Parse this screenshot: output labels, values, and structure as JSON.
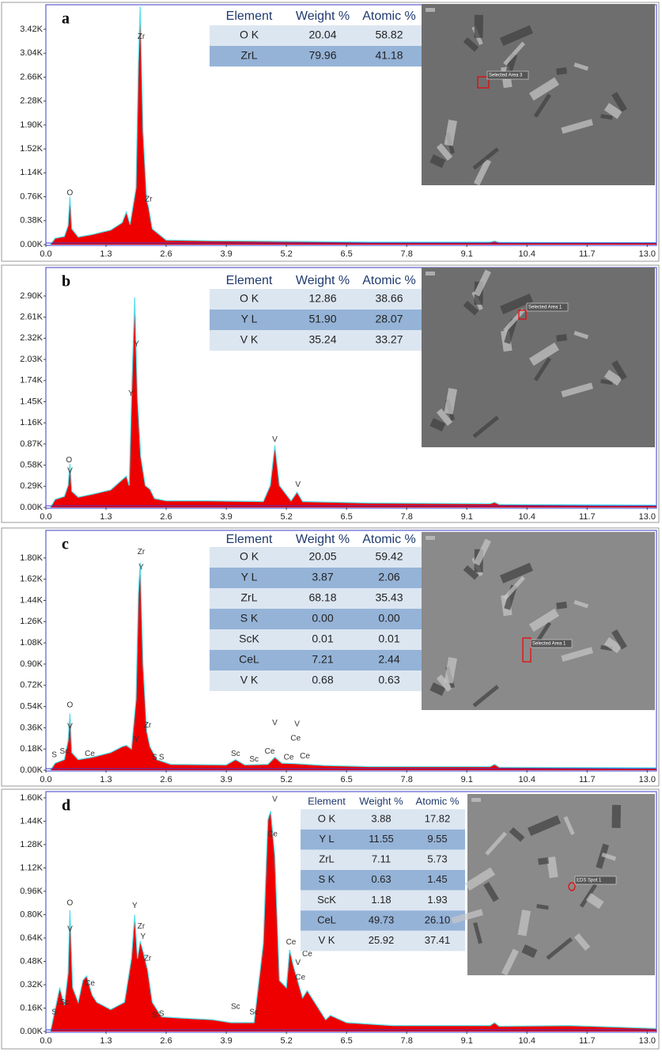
{
  "chart_data": [
    {
      "type": "area",
      "panel_label": "a",
      "color": "#ee0000",
      "line_color": "#55dde8",
      "xlim": [
        0,
        13.2
      ],
      "ylim": [
        0,
        3810
      ],
      "xticks": [
        {
          "value": 0,
          "label": "0.0"
        },
        1.3,
        2.6,
        3.9,
        5.2,
        6.5,
        7.8,
        9.1,
        10.4,
        11.7,
        {
          "value": 13,
          "label": "13.0"
        }
      ],
      "yticks": [
        {
          "value": 0,
          "label": "0.00K"
        },
        {
          "value": 380,
          "label": "0.38K"
        },
        {
          "value": 760,
          "label": "0.76K"
        },
        {
          "value": 1140,
          "label": "1.14K"
        },
        {
          "value": 1520,
          "label": "1.52K"
        },
        {
          "value": 1900,
          "label": "1.90K"
        },
        {
          "value": 2280,
          "label": "2.28K"
        },
        {
          "value": 2660,
          "label": "2.66K"
        },
        {
          "value": 3040,
          "label": "3.04K"
        },
        {
          "value": 3420,
          "label": "3.42K"
        }
      ],
      "x": [
        0.1,
        0.2,
        0.4,
        0.48,
        0.52,
        0.56,
        0.7,
        1.0,
        1.4,
        1.65,
        1.74,
        1.82,
        1.95,
        2.0,
        2.04,
        2.1,
        2.18,
        2.22,
        2.3,
        2.6,
        3.5,
        5.2,
        7.0,
        9.6,
        9.7,
        9.8,
        13.2
      ],
      "values": [
        0,
        100,
        130,
        300,
        760,
        250,
        120,
        160,
        230,
        350,
        520,
        320,
        900,
        2900,
        3780,
        1800,
        700,
        600,
        250,
        70,
        60,
        50,
        40,
        40,
        55,
        35,
        30
      ],
      "annotations": [
        {
          "text": "O",
          "x": 0.52,
          "y": 820
        },
        {
          "text": "Zr",
          "x": 2.06,
          "y": 3300
        },
        {
          "text": "Zr",
          "x": 2.22,
          "y": 720
        }
      ],
      "table": {
        "columns": [
          "Element",
          "Weight %",
          "Atomic %"
        ],
        "rows": [
          [
            "O K",
            "20.04",
            "58.82"
          ],
          [
            "ZrL",
            "79.96",
            "41.18"
          ]
        ]
      },
      "image_caption": "Selected Area 3"
    },
    {
      "type": "area",
      "panel_label": "b",
      "color": "#ee0000",
      "line_color": "#55dde8",
      "xlim": [
        0,
        13.2
      ],
      "ylim": [
        0,
        3290
      ],
      "xticks": [
        {
          "value": 0,
          "label": "0.0"
        },
        1.3,
        2.6,
        3.9,
        5.2,
        6.5,
        7.8,
        9.1,
        10.4,
        11.7,
        {
          "value": 13,
          "label": "13.0"
        }
      ],
      "yticks": [
        {
          "value": 0,
          "label": "0.00K"
        },
        {
          "value": 290,
          "label": "0.29K"
        },
        {
          "value": 580,
          "label": "0.58K"
        },
        {
          "value": 870,
          "label": "0.87K"
        },
        {
          "value": 1160,
          "label": "1.16K"
        },
        {
          "value": 1450,
          "label": "1.45K"
        },
        {
          "value": 1740,
          "label": "1.74K"
        },
        {
          "value": 2030,
          "label": "2.03K"
        },
        {
          "value": 2320,
          "label": "2.32K"
        },
        {
          "value": 2610,
          "label": "2.61K"
        },
        {
          "value": 2900,
          "label": "2.90K"
        }
      ],
      "x": [
        0.1,
        0.2,
        0.4,
        0.48,
        0.52,
        0.56,
        0.7,
        1.0,
        1.4,
        1.65,
        1.74,
        1.8,
        1.86,
        1.92,
        1.98,
        2.05,
        2.15,
        2.25,
        2.35,
        2.6,
        3.5,
        4.7,
        4.85,
        4.95,
        5.05,
        5.3,
        5.43,
        5.55,
        7.0,
        9.6,
        9.7,
        9.8,
        13.2
      ],
      "values": [
        0,
        110,
        150,
        300,
        600,
        220,
        140,
        180,
        240,
        380,
        430,
        300,
        1700,
        2880,
        1500,
        700,
        300,
        250,
        120,
        90,
        90,
        80,
        300,
        850,
        300,
        90,
        210,
        80,
        60,
        50,
        70,
        40,
        30
      ],
      "annotations": [
        {
          "text": "O",
          "x": 0.5,
          "y": 650
        },
        {
          "text": "V",
          "x": 0.52,
          "y": 500
        },
        {
          "text": "Y",
          "x": 1.96,
          "y": 2240
        },
        {
          "text": "Y",
          "x": 1.84,
          "y": 1560
        },
        {
          "text": "V",
          "x": 4.95,
          "y": 930
        },
        {
          "text": "V",
          "x": 5.45,
          "y": 310
        }
      ],
      "table": {
        "columns": [
          "Element",
          "Weight %",
          "Atomic %"
        ],
        "rows": [
          [
            "O K",
            "12.86",
            "38.66"
          ],
          [
            "Y L",
            "51.90",
            "28.07"
          ],
          [
            "V K",
            "35.24",
            "33.27"
          ]
        ]
      },
      "image_caption": "Selected Area 1"
    },
    {
      "type": "area",
      "panel_label": "c",
      "color": "#ee0000",
      "line_color": "#55dde8",
      "xlim": [
        0,
        13.2
      ],
      "ylim": [
        0,
        2034
      ],
      "xticks": [
        {
          "value": 0,
          "label": "0.0"
        },
        1.3,
        2.6,
        3.9,
        5.2,
        6.5,
        7.8,
        9.1,
        10.4,
        11.7,
        {
          "value": 13,
          "label": "13.0"
        }
      ],
      "yticks": [
        {
          "value": 0,
          "label": "0.00K"
        },
        {
          "value": 180,
          "label": "0.18K"
        },
        {
          "value": 360,
          "label": "0.36K"
        },
        {
          "value": 540,
          "label": "0.54K"
        },
        {
          "value": 720,
          "label": "0.72K"
        },
        {
          "value": 900,
          "label": "0.90K"
        },
        {
          "value": 1080,
          "label": "1.08K"
        },
        {
          "value": 1260,
          "label": "1.26K"
        },
        {
          "value": 1440,
          "label": "1.44K"
        },
        {
          "value": 1620,
          "label": "1.62K"
        },
        {
          "value": 1800,
          "label": "1.80K"
        }
      ],
      "x": [
        0.1,
        0.2,
        0.4,
        0.48,
        0.52,
        0.56,
        0.7,
        1.0,
        1.4,
        1.65,
        1.74,
        1.85,
        1.95,
        2.0,
        2.04,
        2.1,
        2.18,
        2.25,
        2.4,
        2.7,
        3.9,
        4.1,
        4.3,
        4.8,
        4.95,
        5.1,
        5.4,
        6.0,
        7.0,
        9.6,
        9.7,
        9.8,
        13.2
      ],
      "values": [
        0,
        60,
        90,
        250,
        480,
        150,
        90,
        110,
        150,
        200,
        210,
        180,
        600,
        1500,
        1760,
        900,
        330,
        200,
        90,
        50,
        45,
        90,
        45,
        50,
        110,
        60,
        55,
        40,
        30,
        30,
        50,
        25,
        20
      ],
      "annotations": [
        {
          "text": "O",
          "x": 0.52,
          "y": 550
        },
        {
          "text": "V",
          "x": 0.52,
          "y": 370
        },
        {
          "text": "S",
          "x": 0.18,
          "y": 130
        },
        {
          "text": "Sc",
          "x": 0.4,
          "y": 160
        },
        {
          "text": "Ce",
          "x": 0.95,
          "y": 140
        },
        {
          "text": "Zr",
          "x": 2.06,
          "y": 1850
        },
        {
          "text": "Y",
          "x": 2.06,
          "y": 1720
        },
        {
          "text": "Y",
          "x": 1.96,
          "y": 260
        },
        {
          "text": "Zr",
          "x": 2.2,
          "y": 380
        },
        {
          "text": "S",
          "x": 2.35,
          "y": 110
        },
        {
          "text": "S",
          "x": 2.5,
          "y": 110
        },
        {
          "text": "Sc",
          "x": 4.1,
          "y": 140
        },
        {
          "text": "Sc",
          "x": 4.5,
          "y": 90
        },
        {
          "text": "Ce",
          "x": 4.84,
          "y": 160
        },
        {
          "text": "V",
          "x": 4.95,
          "y": 400
        },
        {
          "text": "V",
          "x": 5.43,
          "y": 390
        },
        {
          "text": "Ce",
          "x": 5.4,
          "y": 270
        },
        {
          "text": "Ce",
          "x": 5.25,
          "y": 110
        },
        {
          "text": "Ce",
          "x": 5.6,
          "y": 120
        }
      ],
      "table": {
        "columns": [
          "Element",
          "Weight %",
          "Atomic %"
        ],
        "rows": [
          [
            "O K",
            "20.05",
            "59.42"
          ],
          [
            "Y L",
            "3.87",
            "2.06"
          ],
          [
            "ZrL",
            "68.18",
            "35.43"
          ],
          [
            "S K",
            "0.00",
            "0.00"
          ],
          [
            "ScK",
            "0.01",
            "0.01"
          ],
          [
            "CeL",
            "7.21",
            "2.44"
          ],
          [
            "V K",
            "0.68",
            "0.63"
          ]
        ]
      },
      "image_caption": "Selected Area 1"
    },
    {
      "type": "area",
      "panel_label": "d",
      "color": "#ee0000",
      "line_color": "#55dde8",
      "xlim": [
        0,
        13.2
      ],
      "ylim": [
        0,
        1643
      ],
      "xticks": [
        {
          "value": 0,
          "label": "0.0"
        },
        1.3,
        2.6,
        3.9,
        5.2,
        6.5,
        7.8,
        9.1,
        10.4,
        11.7,
        {
          "value": 13,
          "label": "13.0"
        }
      ],
      "yticks": [
        {
          "value": 0,
          "label": "0.00K"
        },
        {
          "value": 160,
          "label": "0.16K"
        },
        {
          "value": 320,
          "label": "0.32K"
        },
        {
          "value": 480,
          "label": "0.48K"
        },
        {
          "value": 640,
          "label": "0.64K"
        },
        {
          "value": 800,
          "label": "0.80K"
        },
        {
          "value": 960,
          "label": "0.96K"
        },
        {
          "value": 1120,
          "label": "1.12K"
        },
        {
          "value": 1280,
          "label": "1.28K"
        },
        {
          "value": 1440,
          "label": "1.44K"
        },
        {
          "value": 1600,
          "label": "1.60K"
        }
      ],
      "x": [
        0.1,
        0.2,
        0.3,
        0.4,
        0.48,
        0.52,
        0.58,
        0.7,
        0.8,
        0.88,
        1.0,
        1.1,
        1.4,
        1.7,
        1.85,
        1.92,
        1.98,
        2.04,
        2.1,
        2.2,
        2.3,
        2.5,
        3.0,
        3.6,
        4.0,
        4.5,
        4.7,
        4.8,
        4.86,
        4.95,
        5.05,
        5.2,
        5.27,
        5.35,
        5.55,
        5.65,
        6.05,
        6.15,
        6.5,
        7.5,
        9.6,
        9.7,
        9.8,
        11.3,
        13.2
      ],
      "values": [
        0,
        150,
        300,
        180,
        400,
        830,
        300,
        200,
        350,
        380,
        250,
        200,
        150,
        200,
        500,
        800,
        500,
        620,
        550,
        420,
        200,
        100,
        90,
        80,
        60,
        60,
        600,
        1450,
        1510,
        1200,
        350,
        300,
        560,
        450,
        230,
        280,
        80,
        110,
        60,
        40,
        40,
        60,
        35,
        40,
        20
      ],
      "annotations": [
        {
          "text": "O",
          "x": 0.52,
          "y": 880
        },
        {
          "text": "V",
          "x": 0.52,
          "y": 700
        },
        {
          "text": "S",
          "x": 0.18,
          "y": 130
        },
        {
          "text": "Sc",
          "x": 0.4,
          "y": 200
        },
        {
          "text": "Ce",
          "x": 0.95,
          "y": 330
        },
        {
          "text": "Y",
          "x": 1.92,
          "y": 860
        },
        {
          "text": "Zr",
          "x": 2.06,
          "y": 720
        },
        {
          "text": "Y",
          "x": 2.1,
          "y": 650
        },
        {
          "text": "Zr",
          "x": 2.2,
          "y": 500
        },
        {
          "text": "S",
          "x": 2.35,
          "y": 110
        },
        {
          "text": "S",
          "x": 2.5,
          "y": 120
        },
        {
          "text": "Sc",
          "x": 4.1,
          "y": 170
        },
        {
          "text": "Sc",
          "x": 4.5,
          "y": 130
        },
        {
          "text": "V",
          "x": 4.95,
          "y": 1590
        },
        {
          "text": "Ce",
          "x": 4.9,
          "y": 1350
        },
        {
          "text": "Ce",
          "x": 5.3,
          "y": 610
        },
        {
          "text": "V",
          "x": 5.45,
          "y": 470
        },
        {
          "text": "Ce",
          "x": 5.65,
          "y": 530
        },
        {
          "text": "Ce",
          "x": 5.5,
          "y": 370
        }
      ],
      "table": {
        "columns": [
          "Element",
          "Weight %",
          "Atomic %"
        ],
        "rows": [
          [
            "O K",
            "3.88",
            "17.82"
          ],
          [
            "Y L",
            "11.55",
            "9.55"
          ],
          [
            "ZrL",
            "7.11",
            "5.73"
          ],
          [
            "S K",
            "0.63",
            "1.45"
          ],
          [
            "ScK",
            "1.18",
            "1.93"
          ],
          [
            "CeL",
            "49.73",
            "26.10"
          ],
          [
            "V K",
            "25.92",
            "37.41"
          ]
        ]
      },
      "image_caption": "EDS Spot 1"
    }
  ]
}
